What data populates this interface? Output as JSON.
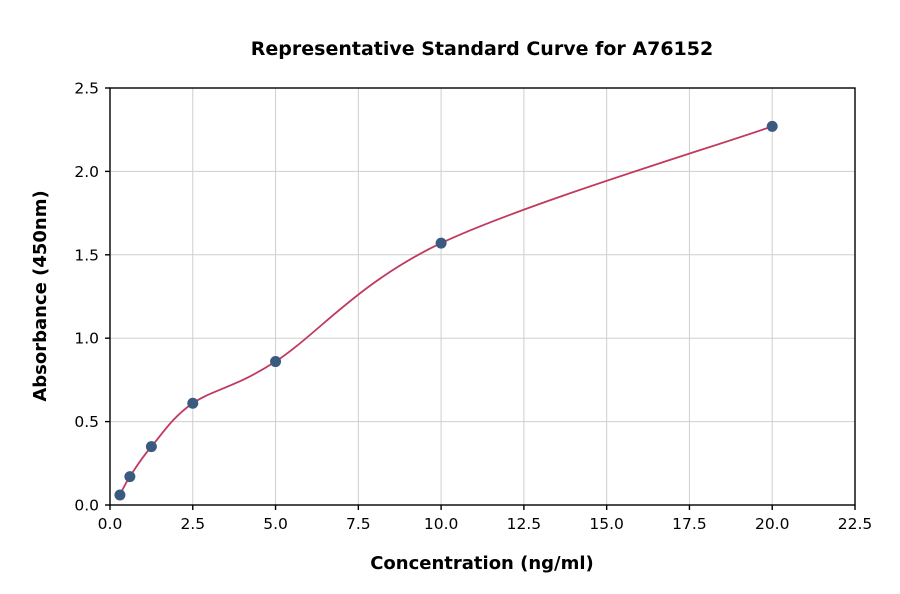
{
  "chart_data": {
    "type": "scatter",
    "title": "Representative Standard Curve for A76152",
    "xlabel": "Concentration (ng/ml)",
    "ylabel": "Absorbance (450nm)",
    "xlim": [
      0,
      22.5
    ],
    "ylim": [
      0,
      2.5
    ],
    "xticks": [
      0,
      2.5,
      5,
      7.5,
      10,
      12.5,
      15,
      17.5,
      20,
      22.5
    ],
    "yticks": [
      0,
      0.5,
      1,
      1.5,
      2,
      2.5
    ],
    "grid": true,
    "legend": "none",
    "points": [
      [
        0.3,
        0.06
      ],
      [
        0.6,
        0.17
      ],
      [
        1.25,
        0.35
      ],
      [
        2.5,
        0.61
      ],
      [
        5,
        0.86
      ],
      [
        10,
        1.57
      ],
      [
        20,
        2.27
      ]
    ],
    "curve": "smooth regression curve through standard points",
    "colors": {
      "point": "#3a5a80",
      "line": "#c13a5e",
      "grid": "#cfcfcf",
      "axis": "#000000",
      "background": "#ffffff"
    }
  }
}
